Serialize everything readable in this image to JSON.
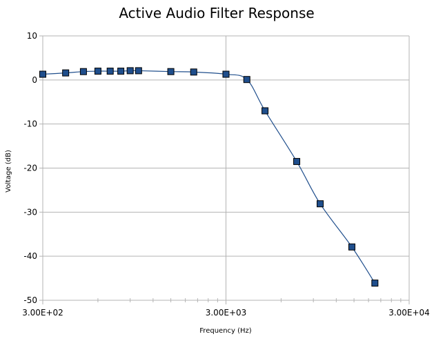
{
  "chart_data": {
    "type": "scatter",
    "title": "Active Audio Filter Response",
    "xlabel": "Frequency (Hz)",
    "ylabel": "Voltage (dB)",
    "x_scale": "log",
    "xlim": [
      300,
      30000
    ],
    "ylim": [
      -50,
      10
    ],
    "x_ticks": [
      300,
      3000,
      30000
    ],
    "x_tick_labels": [
      "3.00E+02",
      "3.00E+03",
      "3.00E+04"
    ],
    "y_ticks": [
      10,
      0,
      -10,
      -20,
      -30,
      -40,
      -50
    ],
    "y_tick_labels": [
      "10",
      "0",
      "-10",
      "-20",
      "-30",
      "-40",
      "-50"
    ],
    "grid": true,
    "legend": "none",
    "series": [
      {
        "color": "#1f4e8c",
        "marker": "square",
        "line": "smooth",
        "points": [
          {
            "x": 300,
            "y": 1.3
          },
          {
            "x": 400,
            "y": 1.6
          },
          {
            "x": 500,
            "y": 1.9
          },
          {
            "x": 600,
            "y": 2.0
          },
          {
            "x": 700,
            "y": 2.0
          },
          {
            "x": 800,
            "y": 2.0
          },
          {
            "x": 900,
            "y": 2.1
          },
          {
            "x": 1000,
            "y": 2.1
          },
          {
            "x": 1500,
            "y": 1.9
          },
          {
            "x": 2000,
            "y": 1.8
          },
          {
            "x": 3000,
            "y": 1.3
          },
          {
            "x": 3900,
            "y": 0.1
          },
          {
            "x": 4900,
            "y": -7.0
          },
          {
            "x": 7300,
            "y": -18.5
          },
          {
            "x": 9800,
            "y": -28.1
          },
          {
            "x": 14600,
            "y": -37.9
          },
          {
            "x": 19500,
            "y": -46.1
          }
        ]
      }
    ]
  }
}
